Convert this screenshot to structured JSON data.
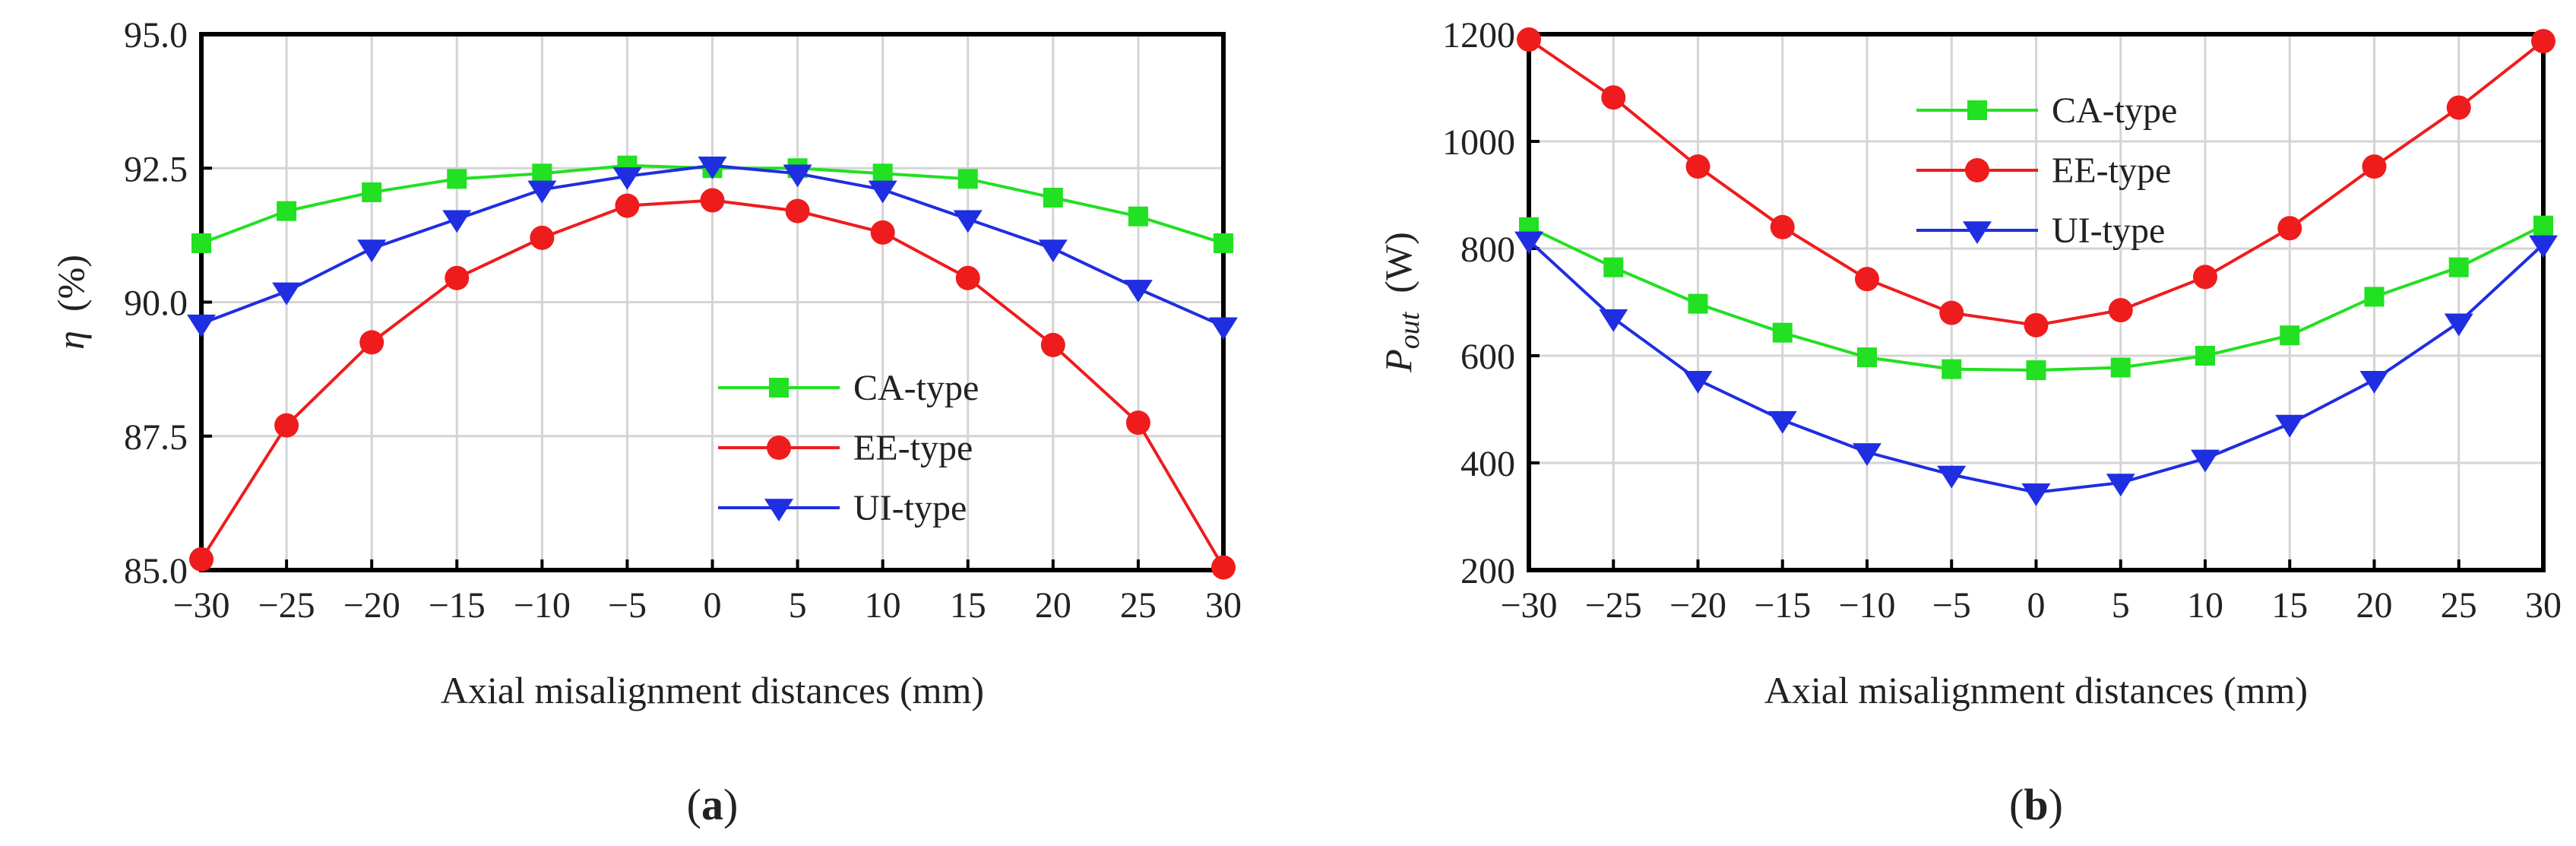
{
  "chart_data": [
    {
      "id": "a",
      "type": "line",
      "panel_label": "a",
      "xlabel": "Axial misalignment distances (mm)",
      "ylabel": "η (%)",
      "ylabel_symbol": "η",
      "ylabel_unit": "(%)",
      "x": [
        -30,
        -25,
        -20,
        -15,
        -10,
        -5,
        0,
        5,
        10,
        15,
        20,
        25,
        30
      ],
      "x_tick_labels": [
        "−30",
        "−25",
        "−20",
        "−15",
        "−10",
        "−5",
        "0",
        "5",
        "10",
        "15",
        "20",
        "25",
        "30"
      ],
      "xlim": [
        -30,
        30
      ],
      "ylim": [
        85.0,
        95.0
      ],
      "y_ticks": [
        85.0,
        87.5,
        90.0,
        92.5,
        95.0
      ],
      "y_tick_labels": [
        "85.0",
        "87.5",
        "90.0",
        "92.5",
        "95.0"
      ],
      "grid": true,
      "legend_position": "bottom-right",
      "series": [
        {
          "name": "CA-type",
          "color": "#22e022",
          "marker": "square",
          "values": [
            91.1,
            91.7,
            92.05,
            92.3,
            92.4,
            92.55,
            92.5,
            92.5,
            92.4,
            92.3,
            91.95,
            91.6,
            91.1
          ]
        },
        {
          "name": "EE-type",
          "color": "#ee1c1c",
          "marker": "circle",
          "values": [
            85.2,
            87.7,
            89.25,
            90.45,
            91.2,
            91.8,
            91.9,
            91.7,
            91.3,
            90.45,
            89.2,
            87.75,
            85.05
          ]
        },
        {
          "name": "UI-type",
          "color": "#1f2ee0",
          "marker": "triangle-down",
          "values": [
            89.6,
            90.2,
            91.0,
            91.55,
            92.1,
            92.35,
            92.55,
            92.4,
            92.1,
            91.55,
            91.0,
            90.25,
            89.55
          ]
        }
      ]
    },
    {
      "id": "b",
      "type": "line",
      "panel_label": "b",
      "xlabel": "Axial misalignment distances (mm)",
      "ylabel": "Pout (W)",
      "ylabel_symbol": "P",
      "ylabel_sub": "out",
      "ylabel_unit": "(W)",
      "x": [
        -30,
        -25,
        -20,
        -15,
        -10,
        -5,
        0,
        5,
        10,
        15,
        20,
        25,
        30
      ],
      "x_tick_labels": [
        "−30",
        "−25",
        "−20",
        "−15",
        "−10",
        "−5",
        "0",
        "5",
        "10",
        "15",
        "20",
        "25",
        "30"
      ],
      "xlim": [
        -30,
        30
      ],
      "ylim": [
        200,
        1200
      ],
      "y_ticks": [
        200,
        400,
        600,
        800,
        1000,
        1200
      ],
      "y_tick_labels": [
        "200",
        "400",
        "600",
        "800",
        "1000",
        "1200"
      ],
      "grid": true,
      "legend_position": "top-center",
      "series": [
        {
          "name": "CA-type",
          "color": "#22e022",
          "marker": "square",
          "values": [
            840,
            765,
            697,
            643,
            597,
            575,
            573,
            578,
            600,
            638,
            710,
            765,
            843
          ]
        },
        {
          "name": "EE-type",
          "color": "#ee1c1c",
          "marker": "circle",
          "values": [
            1190,
            1082,
            953,
            840,
            743,
            680,
            657,
            685,
            747,
            838,
            953,
            1063,
            1187
          ]
        },
        {
          "name": "UI-type",
          "color": "#1f2ee0",
          "marker": "triangle-down",
          "values": [
            815,
            670,
            555,
            480,
            420,
            378,
            345,
            363,
            408,
            473,
            555,
            662,
            808
          ]
        }
      ]
    }
  ]
}
